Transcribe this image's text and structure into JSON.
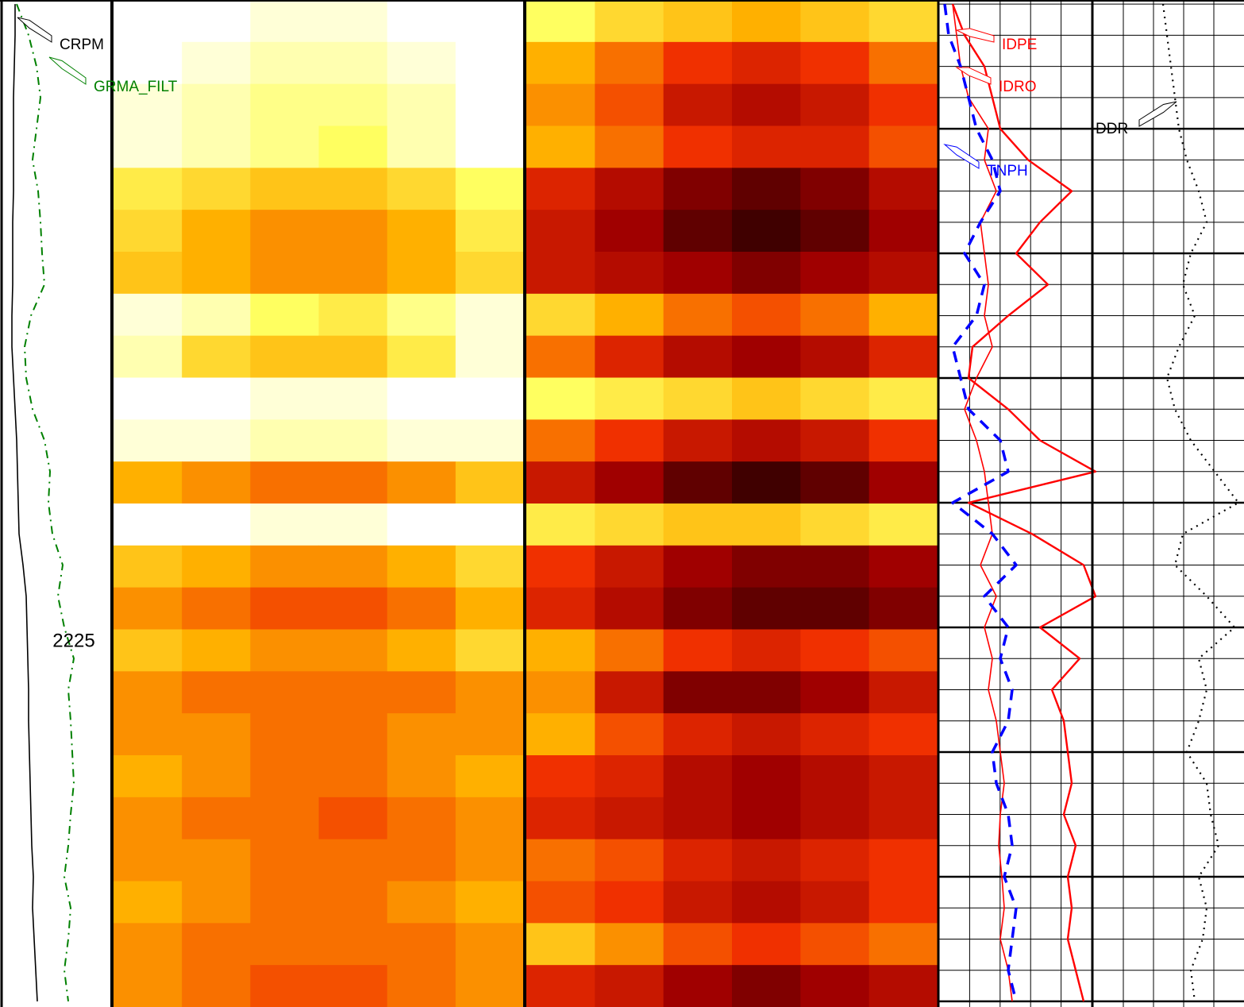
{
  "chart_data": {
    "type": "well-log",
    "ylim": [
      2203.87,
      2236.18
    ],
    "yticks": [
      2204,
      2205,
      2206,
      2207,
      2208,
      2209,
      2210,
      2211,
      2212,
      2213,
      2214,
      2215,
      2216,
      2217,
      2218,
      2219,
      2220,
      2221,
      2222,
      2223,
      2224,
      2225,
      2226,
      2227,
      2228,
      2229,
      2230,
      2231,
      2232,
      2233,
      2234,
      2235,
      2236
    ],
    "major_yticks": [
      2208,
      2212,
      2216,
      2220,
      2224,
      2228,
      2232,
      2236
    ],
    "depth_labels": [
      2225
    ],
    "depth": [
      2204,
      2205,
      2206,
      2207,
      2208,
      2209,
      2210,
      2211,
      2212,
      2213,
      2214,
      2215,
      2216,
      2217,
      2218,
      2219,
      2220,
      2221,
      2222,
      2223,
      2224,
      2225,
      2226,
      2227,
      2228,
      2229,
      2230,
      2231,
      2232,
      2233,
      2234,
      2235,
      2236
    ],
    "colormap": [
      "#ffffff",
      "#ffff60",
      "#ffb000",
      "#f03000",
      "#a00000",
      "#200000"
    ],
    "tracks": [
      {
        "grid": false,
        "curves": [
          {
            "name": "CRPM",
            "color": "#000000",
            "line_style": "solid",
            "xlim": [
              0,
              138
            ],
            "values": [
              16,
              16,
              15,
              14,
              14,
              14,
              14,
              13,
              13,
              13,
              12,
              12,
              14,
              16,
              18,
              19,
              20,
              21,
              26,
              30,
              31,
              32,
              33,
              33,
              34,
              35,
              36,
              37,
              39,
              38,
              40,
              42,
              44
            ]
          },
          {
            "name": "GRMA_FILT",
            "color": "#008000",
            "line_style": "dashdot",
            "xlim": [
              0,
              138
            ],
            "values": [
              18,
              33,
              43,
              48,
              43,
              38,
              45,
              48,
              50,
              53,
              36,
              28,
              30,
              38,
              53,
              60,
              58,
              63,
              76,
              70,
              78,
              90,
              83,
              86,
              88,
              90,
              86,
              83,
              78,
              86,
              83,
              78,
              83
            ]
          }
        ]
      },
      {
        "image": {
          "rows": [
            [
              0,
              0,
              0.05,
              0.05,
              0,
              0
            ],
            [
              0,
              0.05,
              0.1,
              0.1,
              0.05,
              0
            ],
            [
              0.05,
              0.1,
              0.15,
              0.15,
              0.1,
              0
            ],
            [
              0.05,
              0.1,
              0.15,
              0.2,
              0.1,
              0
            ],
            [
              0.25,
              0.3,
              0.35,
              0.35,
              0.3,
              0.2
            ],
            [
              0.3,
              0.4,
              0.45,
              0.45,
              0.4,
              0.25
            ],
            [
              0.35,
              0.4,
              0.45,
              0.45,
              0.4,
              0.3
            ],
            [
              0.05,
              0.1,
              0.2,
              0.25,
              0.15,
              0.05
            ],
            [
              0.1,
              0.3,
              0.35,
              0.35,
              0.25,
              0.05
            ],
            [
              0,
              0,
              0.05,
              0.05,
              0,
              0
            ],
            [
              0.05,
              0.05,
              0.1,
              0.1,
              0.05,
              0.05
            ],
            [
              0.4,
              0.45,
              0.5,
              0.5,
              0.45,
              0.35
            ],
            [
              0,
              0,
              0.05,
              0.05,
              0,
              0
            ],
            [
              0.35,
              0.4,
              0.45,
              0.45,
              0.4,
              0.3
            ],
            [
              0.45,
              0.5,
              0.55,
              0.55,
              0.5,
              0.4
            ],
            [
              0.35,
              0.4,
              0.45,
              0.45,
              0.4,
              0.3
            ],
            [
              0.45,
              0.5,
              0.5,
              0.5,
              0.5,
              0.45
            ],
            [
              0.45,
              0.45,
              0.5,
              0.5,
              0.45,
              0.45
            ],
            [
              0.4,
              0.45,
              0.5,
              0.5,
              0.45,
              0.4
            ],
            [
              0.45,
              0.5,
              0.5,
              0.55,
              0.5,
              0.45
            ],
            [
              0.45,
              0.45,
              0.5,
              0.5,
              0.5,
              0.45
            ],
            [
              0.4,
              0.45,
              0.5,
              0.5,
              0.45,
              0.4
            ],
            [
              0.45,
              0.5,
              0.5,
              0.5,
              0.5,
              0.45
            ],
            [
              0.45,
              0.5,
              0.55,
              0.55,
              0.5,
              0.45
            ]
          ]
        }
      },
      {
        "image": {
          "rows": [
            [
              0.2,
              0.3,
              0.35,
              0.4,
              0.35,
              0.3
            ],
            [
              0.4,
              0.5,
              0.6,
              0.65,
              0.6,
              0.5
            ],
            [
              0.45,
              0.55,
              0.7,
              0.75,
              0.7,
              0.6
            ],
            [
              0.4,
              0.5,
              0.6,
              0.65,
              0.65,
              0.55
            ],
            [
              0.65,
              0.75,
              0.85,
              0.9,
              0.85,
              0.75
            ],
            [
              0.7,
              0.8,
              0.9,
              0.95,
              0.9,
              0.8
            ],
            [
              0.7,
              0.75,
              0.8,
              0.85,
              0.8,
              0.75
            ],
            [
              0.3,
              0.4,
              0.5,
              0.55,
              0.5,
              0.4
            ],
            [
              0.5,
              0.65,
              0.75,
              0.8,
              0.75,
              0.65
            ],
            [
              0.2,
              0.25,
              0.3,
              0.35,
              0.3,
              0.25
            ],
            [
              0.5,
              0.6,
              0.7,
              0.75,
              0.7,
              0.6
            ],
            [
              0.7,
              0.8,
              0.9,
              0.95,
              0.9,
              0.8
            ],
            [
              0.25,
              0.3,
              0.35,
              0.35,
              0.3,
              0.25
            ],
            [
              0.6,
              0.7,
              0.8,
              0.85,
              0.85,
              0.8
            ],
            [
              0.65,
              0.75,
              0.85,
              0.9,
              0.9,
              0.85
            ],
            [
              0.4,
              0.5,
              0.6,
              0.65,
              0.6,
              0.55
            ],
            [
              0.45,
              0.7,
              0.85,
              0.85,
              0.8,
              0.7
            ],
            [
              0.4,
              0.55,
              0.65,
              0.7,
              0.65,
              0.6
            ],
            [
              0.6,
              0.65,
              0.75,
              0.8,
              0.75,
              0.7
            ],
            [
              0.65,
              0.7,
              0.75,
              0.8,
              0.75,
              0.7
            ],
            [
              0.5,
              0.55,
              0.65,
              0.7,
              0.65,
              0.6
            ],
            [
              0.55,
              0.6,
              0.7,
              0.75,
              0.7,
              0.6
            ],
            [
              0.35,
              0.45,
              0.55,
              0.6,
              0.55,
              0.5
            ],
            [
              0.65,
              0.7,
              0.8,
              0.85,
              0.8,
              0.75
            ]
          ]
        }
      },
      {
        "grid": true,
        "grid_divisions": 5,
        "curves": [
          {
            "name": "IDPE",
            "color": "#ff0000",
            "line_style": "solid",
            "xlim": [
              0,
              192
            ],
            "values": [
              17,
              22,
              27,
              37,
              62,
              57,
              72,
              52,
              57,
              62,
              57,
              67,
              47,
              32,
              47,
              57,
              62,
              67,
              52,
              72,
              57,
              67,
              62,
              72,
              77,
              82,
              77,
              75,
              79,
              82,
              77,
              87,
              92
            ]
          },
          {
            "name": "IDRO",
            "color": "#ff0000",
            "line_style": "thick",
            "xlim": [
              0,
              192
            ],
            "values": [
              17,
              32,
              57,
              67,
              77,
              112,
              167,
              127,
              97,
              137,
              87,
              42,
              37,
              87,
              127,
              197,
              37,
              117,
              182,
              197,
              127,
              177,
              142,
              157,
              162,
              167,
              157,
              172,
              162,
              167,
              162,
              172,
              182
            ]
          },
          {
            "name": "TNPH",
            "color": "#0000ff",
            "line_style": "dashed",
            "xlim": [
              0,
              192
            ],
            "values": [
              7,
              12,
              27,
              37,
              47,
              67,
              77,
              52,
              32,
              57,
              47,
              17,
              27,
              37,
              77,
              87,
              17,
              67,
              97,
              57,
              87,
              77,
              92,
              87,
              67,
              72,
              87,
              92,
              82,
              97,
              92,
              87,
              97
            ]
          }
        ]
      },
      {
        "grid": true,
        "grid_divisions": 5,
        "curves": [
          {
            "name": "DDR",
            "color": "#000000",
            "line_style": "dotted",
            "xlim": [
              0,
              190
            ],
            "values": [
              88,
              93,
              98,
              103,
              108,
              118,
              133,
              143,
              123,
              113,
              128,
              108,
              93,
              103,
              123,
              153,
              183,
              113,
              103,
              143,
              178,
              133,
              143,
              133,
              118,
              143,
              148,
              158,
              133,
              143,
              138,
              123,
              128
            ]
          }
        ]
      }
    ]
  }
}
